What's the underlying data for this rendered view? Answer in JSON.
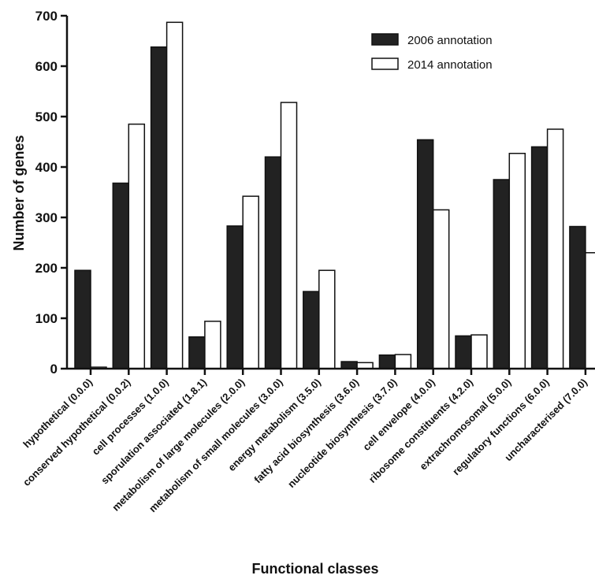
{
  "chart_data": {
    "type": "bar",
    "title": "",
    "xlabel": "Functional classes",
    "ylabel": "Number of genes",
    "ylim": [
      0,
      700
    ],
    "yticks": [
      0,
      100,
      200,
      300,
      400,
      500,
      600,
      700
    ],
    "grid": false,
    "legend_position": "top-right",
    "categories": [
      "hypothetical (0.0.0)",
      "conserved hypothetical (0.0.2)",
      "cell processes (1.0.0)",
      "sporulation associated (1.8.1)",
      "metabolism of large molecules (2.0.0)",
      "metabolism of small molecules (3.0.0)",
      "energy metabolism (3.5.0)",
      "fatty acid biosynthesis (3.6.0)",
      "nucleotide biosynthesis (3.7.0)",
      "cell envelope (4.0.0)",
      "ribosome constituents (4.2.0)",
      "extrachromosomal (5.0.0)",
      "regulatory functions (6.0.0)",
      "uncharacterised (7.0.0)"
    ],
    "series": [
      {
        "name": "2006 annotation",
        "color": "#222222",
        "values": [
          195,
          368,
          638,
          63,
          283,
          420,
          153,
          14,
          27,
          454,
          65,
          375,
          440,
          282
        ]
      },
      {
        "name": "2014 annotation",
        "color": "#ffffff",
        "values": [
          3,
          485,
          687,
          94,
          342,
          528,
          195,
          12,
          28,
          315,
          67,
          427,
          475,
          230
        ]
      }
    ]
  }
}
